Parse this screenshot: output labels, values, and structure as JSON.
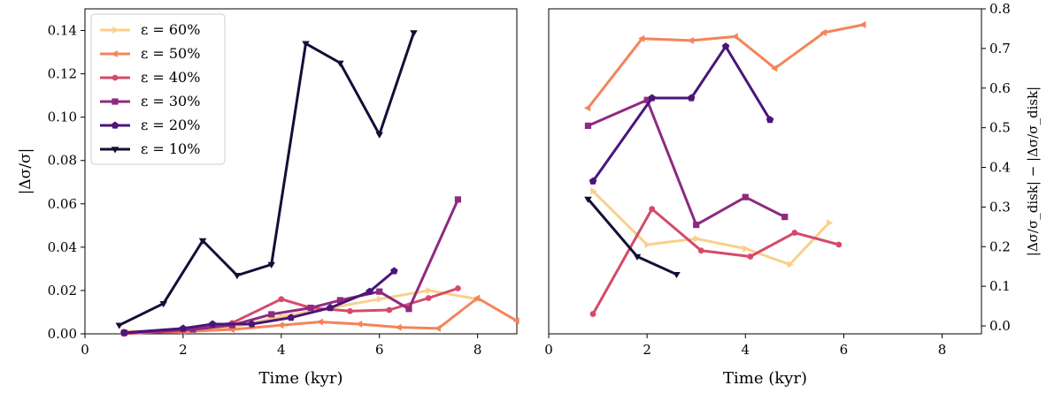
{
  "chart_data": [
    {
      "type": "line",
      "panel": "left",
      "xlabel": "Time (kyr)",
      "ylabel": "|Δσ/σ|",
      "xlim": [
        0,
        8.8
      ],
      "ylim": [
        0,
        0.15
      ],
      "xticks": [
        "0",
        "2",
        "4",
        "6",
        "8"
      ],
      "yticks": [
        "0.00",
        "0.02",
        "0.04",
        "0.06",
        "0.08",
        "0.10",
        "0.12",
        "0.14"
      ],
      "legend": {
        "location": "top-left"
      },
      "series": [
        {
          "name": "ε = 60%",
          "color": "#f9d08b",
          "marker": "triangle-right",
          "x": [
            0.8,
            2.0,
            3.0,
            4.0,
            5.0,
            6.0,
            7.0,
            8.0
          ],
          "y": [
            0.001,
            0.0015,
            0.003,
            0.008,
            0.012,
            0.016,
            0.02,
            0.016
          ]
        },
        {
          "name": "ε = 50%",
          "color": "#f4845a",
          "marker": "triangle-left",
          "x": [
            0.8,
            2.0,
            3.0,
            4.0,
            4.8,
            5.6,
            6.4,
            7.2,
            8.0,
            8.8
          ],
          "y": [
            0.0005,
            0.001,
            0.002,
            0.004,
            0.0055,
            0.0045,
            0.003,
            0.0025,
            0.0165,
            0.006
          ]
        },
        {
          "name": "ε = 40%",
          "color": "#d44a6b",
          "marker": "dot",
          "x": [
            0.8,
            2.0,
            3.0,
            4.0,
            4.6,
            5.4,
            6.2,
            7.0,
            7.6
          ],
          "y": [
            0.0,
            0.0015,
            0.005,
            0.016,
            0.012,
            0.0105,
            0.011,
            0.0165,
            0.021
          ]
        },
        {
          "name": "ε = 30%",
          "color": "#8e2a80",
          "marker": "square",
          "x": [
            0.8,
            2.2,
            3.0,
            3.8,
            4.6,
            5.2,
            6.0,
            6.6,
            7.6
          ],
          "y": [
            0.0005,
            0.002,
            0.004,
            0.009,
            0.012,
            0.0155,
            0.0195,
            0.0115,
            0.062
          ]
        },
        {
          "name": "ε = 20%",
          "color": "#4b1579",
          "marker": "pentagon",
          "x": [
            0.8,
            2.0,
            2.6,
            3.4,
            4.2,
            5.0,
            5.8,
            6.3
          ],
          "y": [
            0.0005,
            0.0025,
            0.0045,
            0.0045,
            0.0075,
            0.012,
            0.0195,
            0.029
          ]
        },
        {
          "name": "ε = 10%",
          "color": "#140e36",
          "marker": "triangle-down",
          "x": [
            0.7,
            1.6,
            2.4,
            3.1,
            3.8,
            4.5,
            5.2,
            6.0,
            6.7
          ],
          "y": [
            0.004,
            0.014,
            0.043,
            0.027,
            0.032,
            0.134,
            0.125,
            0.092,
            0.139
          ]
        }
      ]
    },
    {
      "type": "line",
      "panel": "right",
      "xlabel": "Time (kyr)",
      "ylabel": "|Δσ/σ_disk| − |Δσ/σ_disk|",
      "ylabel_sub": "disk",
      "xlim": [
        0,
        8.8
      ],
      "ylim": [
        -0.02,
        0.8
      ],
      "xticks": [
        "0",
        "2",
        "4",
        "6",
        "8"
      ],
      "yticks": [
        "0.0",
        "0.1",
        "0.2",
        "0.3",
        "0.4",
        "0.5",
        "0.6",
        "0.7",
        "0.8"
      ],
      "series": [
        {
          "name": "ε = 60%",
          "color": "#f9d08b",
          "marker": "triangle-right",
          "x": [
            0.9,
            2.0,
            3.0,
            4.0,
            4.9,
            5.7
          ],
          "y": [
            0.34,
            0.205,
            0.22,
            0.195,
            0.155,
            0.26
          ]
        },
        {
          "name": "ε = 50%",
          "color": "#f4845a",
          "marker": "triangle-left",
          "x": [
            0.8,
            1.9,
            2.9,
            3.8,
            4.6,
            5.6,
            6.4
          ],
          "y": [
            0.55,
            0.725,
            0.72,
            0.73,
            0.65,
            0.74,
            0.76
          ]
        },
        {
          "name": "ε = 40%",
          "color": "#d44a6b",
          "marker": "dot",
          "x": [
            0.9,
            2.1,
            3.1,
            4.1,
            5.0,
            5.9
          ],
          "y": [
            0.03,
            0.295,
            0.19,
            0.175,
            0.235,
            0.205
          ]
        },
        {
          "name": "ε = 30%",
          "color": "#8e2a80",
          "marker": "square",
          "x": [
            0.8,
            2.0,
            3.0,
            4.0,
            4.8
          ],
          "y": [
            0.505,
            0.57,
            0.255,
            0.325,
            0.275
          ]
        },
        {
          "name": "ε = 20%",
          "color": "#4b1579",
          "marker": "pentagon",
          "x": [
            0.9,
            2.1,
            2.9,
            3.6,
            4.5
          ],
          "y": [
            0.365,
            0.575,
            0.575,
            0.705,
            0.52
          ]
        },
        {
          "name": "ε = 10%",
          "color": "#140e36",
          "marker": "triangle-down",
          "x": [
            0.8,
            1.8,
            2.6
          ],
          "y": [
            0.32,
            0.175,
            0.13
          ]
        }
      ]
    }
  ]
}
